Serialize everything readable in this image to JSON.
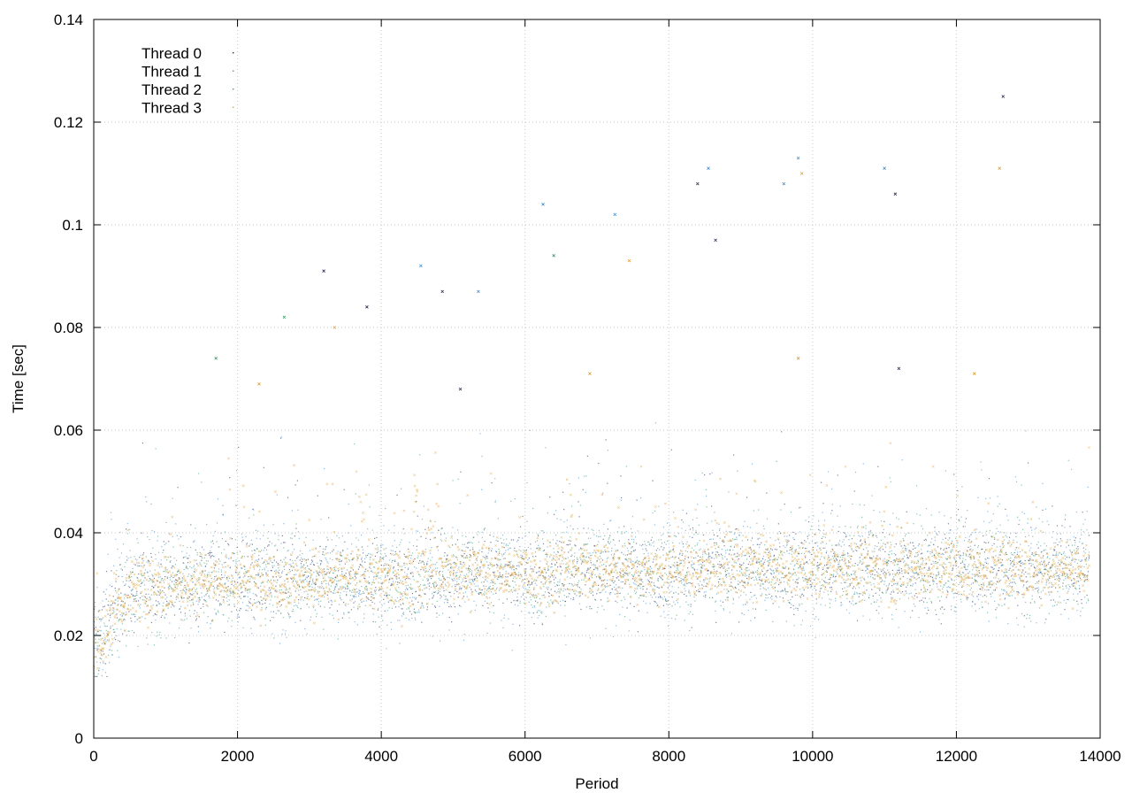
{
  "chart_data": {
    "type": "scatter",
    "title": "",
    "xlabel": "Period",
    "ylabel": "Time [sec]",
    "xlim": [
      0,
      14000
    ],
    "ylim": [
      0,
      0.14
    ],
    "xticks": [
      0,
      2000,
      4000,
      6000,
      8000,
      10000,
      12000,
      14000
    ],
    "yticks": [
      0,
      0.02,
      0.04,
      0.06,
      0.08,
      0.1,
      0.12,
      0.14
    ],
    "xtick_labels": [
      "0",
      "2000",
      "4000",
      "6000",
      "8000",
      "10000",
      "12000",
      "14000"
    ],
    "ytick_labels": [
      "0",
      "0.02",
      "0.04",
      "0.06",
      "0.08",
      "0.1",
      "0.12",
      "0.14"
    ],
    "grid": true,
    "legend_position": "top-left",
    "num_periods": 13850,
    "baseline_profile": [
      [
        0,
        0.017
      ],
      [
        100,
        0.019
      ],
      [
        200,
        0.022
      ],
      [
        300,
        0.025
      ],
      [
        400,
        0.027
      ],
      [
        500,
        0.028
      ],
      [
        700,
        0.029
      ],
      [
        1000,
        0.03
      ],
      [
        2000,
        0.031
      ],
      [
        4000,
        0.031
      ],
      [
        5000,
        0.032
      ],
      [
        8000,
        0.033
      ],
      [
        10000,
        0.033
      ],
      [
        12000,
        0.033
      ],
      [
        13850,
        0.033
      ]
    ],
    "series": [
      {
        "name": "Thread 0",
        "color": "#2a2a5a",
        "marker": "dot",
        "spread": 0.004
      },
      {
        "name": "Thread 1",
        "color": "#3f8fd4",
        "marker": "dot",
        "spread": 0.005
      },
      {
        "name": "Thread 2",
        "color": "#3aa06a",
        "marker": "dot",
        "spread": 0.0045
      },
      {
        "name": "Thread 3",
        "color": "#e0a030",
        "marker": "cross",
        "spread": 0.003
      }
    ],
    "outliers": [
      {
        "x": 3200,
        "y": 0.091,
        "series": "Thread 0"
      },
      {
        "x": 3800,
        "y": 0.084,
        "series": "Thread 0"
      },
      {
        "x": 4550,
        "y": 0.092,
        "series": "Thread 1"
      },
      {
        "x": 4850,
        "y": 0.087,
        "series": "Thread 0"
      },
      {
        "x": 5350,
        "y": 0.087,
        "series": "Thread 1"
      },
      {
        "x": 6250,
        "y": 0.104,
        "series": "Thread 1"
      },
      {
        "x": 6400,
        "y": 0.094,
        "series": "Thread 2"
      },
      {
        "x": 7250,
        "y": 0.102,
        "series": "Thread 1"
      },
      {
        "x": 7450,
        "y": 0.093,
        "series": "Thread 3"
      },
      {
        "x": 8400,
        "y": 0.108,
        "series": "Thread 0"
      },
      {
        "x": 8550,
        "y": 0.111,
        "series": "Thread 1"
      },
      {
        "x": 8650,
        "y": 0.097,
        "series": "Thread 0"
      },
      {
        "x": 9600,
        "y": 0.108,
        "series": "Thread 1"
      },
      {
        "x": 9800,
        "y": 0.113,
        "series": "Thread 1"
      },
      {
        "x": 9850,
        "y": 0.11,
        "series": "Thread 3"
      },
      {
        "x": 11000,
        "y": 0.111,
        "series": "Thread 1"
      },
      {
        "x": 11150,
        "y": 0.106,
        "series": "Thread 0"
      },
      {
        "x": 12600,
        "y": 0.111,
        "series": "Thread 3"
      },
      {
        "x": 12650,
        "y": 0.125,
        "series": "Thread 0"
      },
      {
        "x": 1700,
        "y": 0.074,
        "series": "Thread 2"
      },
      {
        "x": 2300,
        "y": 0.069,
        "series": "Thread 3"
      },
      {
        "x": 2650,
        "y": 0.082,
        "series": "Thread 2"
      },
      {
        "x": 3350,
        "y": 0.08,
        "series": "Thread 3"
      },
      {
        "x": 5100,
        "y": 0.068,
        "series": "Thread 0"
      },
      {
        "x": 6900,
        "y": 0.071,
        "series": "Thread 3"
      },
      {
        "x": 9800,
        "y": 0.074,
        "series": "Thread 3"
      },
      {
        "x": 11200,
        "y": 0.072,
        "series": "Thread 0"
      },
      {
        "x": 12250,
        "y": 0.071,
        "series": "Thread 3"
      }
    ]
  }
}
